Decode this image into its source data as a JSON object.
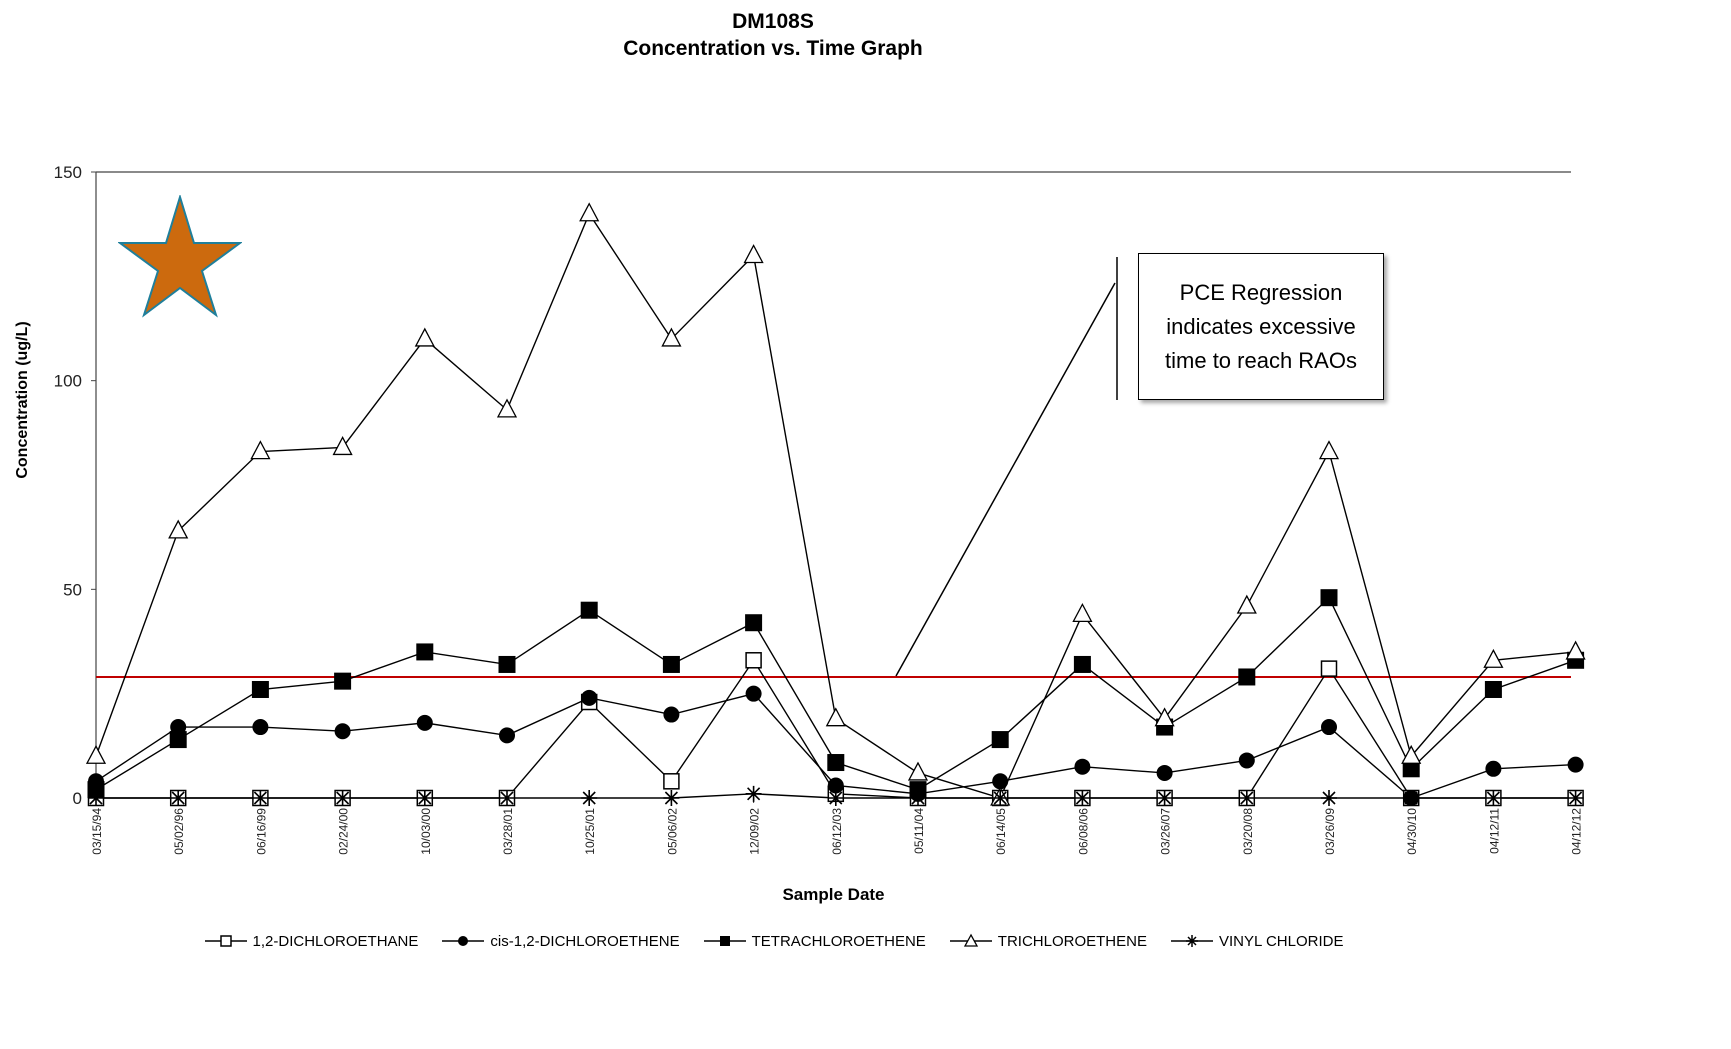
{
  "title_line1": "DM108S",
  "title_line2": "Concentration vs. Time Graph",
  "chart_data": {
    "type": "line",
    "title": "DM108S Concentration vs. Time Graph",
    "xlabel": "Sample Date",
    "ylabel": "Concentration (ug/L)",
    "ylim": [
      0,
      150
    ],
    "yticks": [
      0,
      50,
      100,
      150
    ],
    "grid": false,
    "legend_position": "bottom",
    "categories": [
      "03/15/94",
      "05/02/96",
      "06/16/99",
      "02/24/00",
      "10/03/00",
      "03/28/01",
      "10/25/01",
      "05/06/02",
      "12/09/02",
      "06/12/03",
      "05/11/04",
      "06/14/05",
      "06/08/06",
      "03/26/07",
      "03/20/08",
      "03/26/09",
      "04/30/10",
      "04/12/11",
      "04/12/12"
    ],
    "series": [
      {
        "name": "1,2-DICHLOROETHANE",
        "marker": "open-square",
        "values": [
          0,
          0,
          0,
          0,
          0,
          0,
          23,
          4,
          33,
          1,
          0,
          0,
          0,
          0,
          0,
          31,
          0,
          0,
          0
        ]
      },
      {
        "name": "cis-1,2-DICHLOROETHENE",
        "marker": "filled-circle",
        "values": [
          4,
          17,
          17,
          16,
          18,
          15,
          24,
          20,
          25,
          3,
          1,
          4,
          7.5,
          6,
          9,
          17,
          0,
          7,
          8
        ]
      },
      {
        "name": "TETRACHLOROETHENE",
        "marker": "filled-square",
        "values": [
          2,
          14,
          26,
          28,
          35,
          32,
          45,
          32,
          42,
          8.5,
          2,
          14,
          32,
          17,
          29,
          48,
          7,
          26,
          33
        ]
      },
      {
        "name": "TRICHLOROETHENE",
        "marker": "open-triangle",
        "values": [
          10,
          64,
          83,
          84,
          110,
          93,
          140,
          110,
          130,
          19,
          6,
          0,
          44,
          19,
          46,
          83,
          10,
          33,
          35
        ]
      },
      {
        "name": "VINYL CHLORIDE",
        "marker": "asterisk",
        "values": [
          0,
          0,
          0,
          0,
          0,
          0,
          0,
          0,
          1,
          0,
          0,
          0,
          0,
          0,
          0,
          0,
          0,
          0,
          0
        ]
      }
    ],
    "regression_line": {
      "y": 29,
      "color": "#c00000"
    }
  },
  "annotation_text": "PCE Regression indicates excessive time to reach RAOs",
  "colors": {
    "star_fill": "#cc6a0e",
    "star_stroke": "#1f7f9b",
    "regression": "#c00000"
  }
}
